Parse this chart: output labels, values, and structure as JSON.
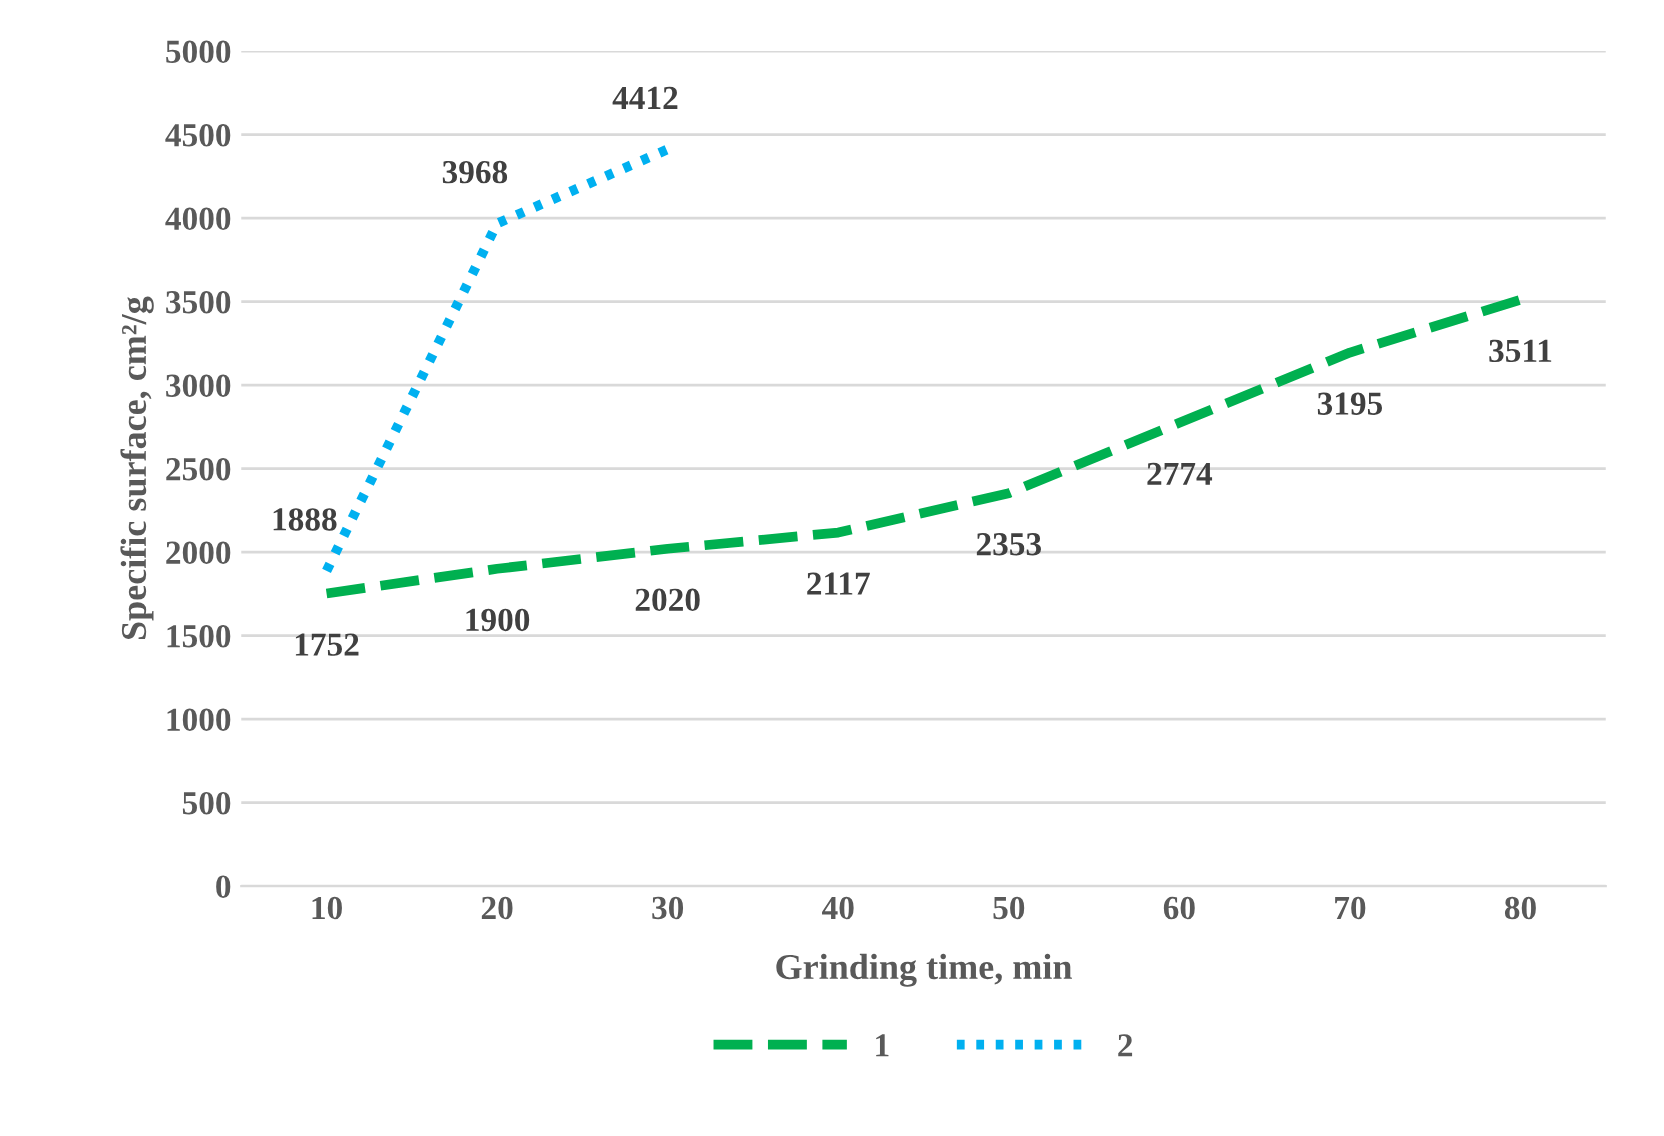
{
  "chart_data": {
    "type": "line",
    "xlabel": "Grinding time, min",
    "ylabel": "Specific surface, cm²/g",
    "categories": [
      "10",
      "20",
      "30",
      "40",
      "50",
      "60",
      "70",
      "80"
    ],
    "series": [
      {
        "name": "1",
        "color": "#00b050",
        "line_style": "dashed",
        "values": [
          1752,
          1900,
          2020,
          2117,
          2353,
          2774,
          3195,
          3511
        ]
      },
      {
        "name": "2",
        "color": "#00b0f0",
        "line_style": "dotted",
        "values": [
          1888,
          3968,
          4412,
          null,
          null,
          null,
          null,
          null
        ]
      }
    ],
    "ylim": [
      0,
      5000
    ],
    "yticks": [
      0,
      500,
      1000,
      1500,
      2000,
      2500,
      3000,
      3500,
      4000,
      4500,
      5000
    ],
    "grid": "y",
    "legend": "bottom",
    "data_labels": true,
    "marker": "none"
  }
}
